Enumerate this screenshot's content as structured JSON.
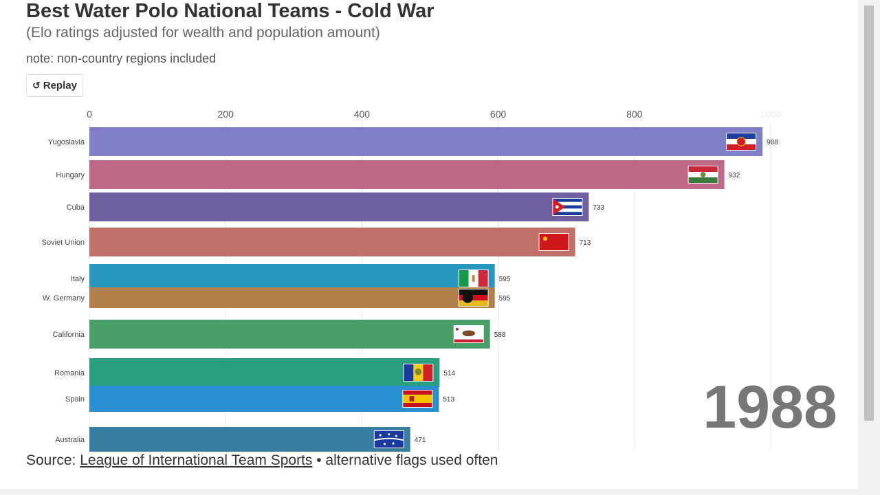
{
  "header": {
    "title": "Best Water Polo National Teams - Cold War",
    "subtitle": "(Elo ratings adjusted for wealth and population amount)",
    "note": "note: non-country regions included",
    "replay_label": "Replay"
  },
  "footer": {
    "source_prefix": "Source:",
    "source_link": "League of International Team Sports",
    "source_suffix": "• alternative flags used often"
  },
  "chart_data": {
    "type": "bar",
    "orientation": "horizontal",
    "year_label": "1988",
    "xlim": [
      0,
      1000
    ],
    "ticks": [
      0,
      200,
      400,
      600,
      800,
      1000
    ],
    "tick_labels": [
      "0",
      "200",
      "400",
      "600",
      "800",
      "1000"
    ],
    "grid": true,
    "bars": [
      {
        "name": "Yugoslavia",
        "value": 988,
        "value_label": "988",
        "color": "#8080c8",
        "flag": "yugoslavia-flag"
      },
      {
        "name": "Hungary",
        "value": 932,
        "value_label": "932",
        "color": "#c06888",
        "flag": "hungary-flag"
      },
      {
        "name": "Cuba",
        "value": 733,
        "value_label": "733",
        "color": "#7060a0",
        "flag": "cuba-flag"
      },
      {
        "name": "Soviet Union",
        "value": 713,
        "value_label": "713",
        "color": "#c07068",
        "flag": "ussr-flag"
      },
      {
        "name": "Italy",
        "value": 595,
        "value_label": "595",
        "color": "#2898c0",
        "flag": "italy-flag"
      },
      {
        "name": "W. Germany",
        "value": 595,
        "value_label": "595",
        "color": "#b08048",
        "flag": "west-germany-flag"
      },
      {
        "name": "California",
        "value": 588,
        "value_label": "588",
        "color": "#48a068",
        "flag": "california-flag"
      },
      {
        "name": "Romania",
        "value": 514,
        "value_label": "514",
        "color": "#28a080",
        "flag": "romania-flag"
      },
      {
        "name": "Spain",
        "value": 513,
        "value_label": "513",
        "color": "#2890d0",
        "flag": "spain-flag"
      },
      {
        "name": "Australia",
        "value": 471,
        "value_label": "471",
        "color": "#387ea0",
        "flag": "australia-flag"
      }
    ]
  }
}
